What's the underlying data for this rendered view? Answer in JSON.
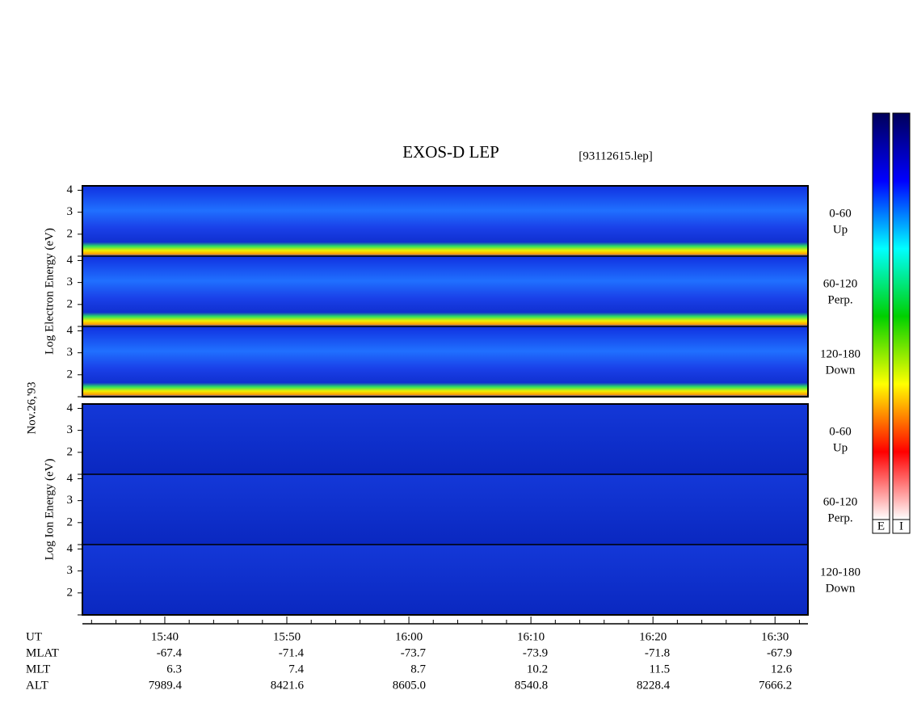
{
  "chart_data": {
    "type": "spectrogram",
    "title": "EXOS-D LEP",
    "file": "[93112615.lep]",
    "date_label": "Nov.26,'93",
    "xlim": [
      933.25,
      992.7
    ],
    "xticks": [
      {
        "value": 940,
        "label": "15:40"
      },
      {
        "value": 950,
        "label": "15:50"
      },
      {
        "value": 960,
        "label": "16:00"
      },
      {
        "value": 970,
        "label": "16:10"
      },
      {
        "value": 980,
        "label": "16:20"
      },
      {
        "value": 990,
        "label": "16:30"
      }
    ],
    "xminorticks": [
      934,
      936,
      938,
      942,
      944,
      946,
      948,
      952,
      954,
      956,
      958,
      962,
      964,
      966,
      968,
      972,
      974,
      976,
      978,
      982,
      984,
      986,
      988,
      992
    ],
    "ylim": [
      1,
      4.2
    ],
    "yticks": [
      2,
      3,
      4
    ],
    "groups": [
      {
        "ylabel": "Log  Electron  Energy (eV)",
        "panels": [
          {
            "label": "0-60",
            "sublabel": "Up"
          },
          {
            "label": "60-120",
            "sublabel": "Perp."
          },
          {
            "label": "120-180",
            "sublabel": "Down"
          }
        ]
      },
      {
        "ylabel": "Log  Ion  Energy (eV)",
        "panels": [
          {
            "label": "0-60",
            "sublabel": "Up"
          },
          {
            "label": "60-120",
            "sublabel": "Perp."
          },
          {
            "label": "120-180",
            "sublabel": "Down"
          }
        ]
      }
    ],
    "x_label": "UT",
    "ephemeris": [
      {
        "name": "MLAT",
        "values": [
          "-67.4",
          "-71.4",
          "-73.7",
          "-73.9",
          "-71.8",
          "-67.9"
        ]
      },
      {
        "name": "MLT",
        "values": [
          "6.3",
          "7.4",
          "8.7",
          "10.2",
          "11.5",
          "12.6"
        ]
      },
      {
        "name": "ALT",
        "values": [
          "7989.4",
          "8421.6",
          "8605.0",
          "8540.8",
          "8228.4",
          "7666.2"
        ]
      }
    ],
    "colorbar": {
      "labels": [
        "E",
        "I"
      ],
      "colors": [
        "#00005a",
        "#0000ff",
        "#00ffff",
        "#00d000",
        "#ffff00",
        "#ff0000",
        "#ffffff"
      ]
    }
  }
}
